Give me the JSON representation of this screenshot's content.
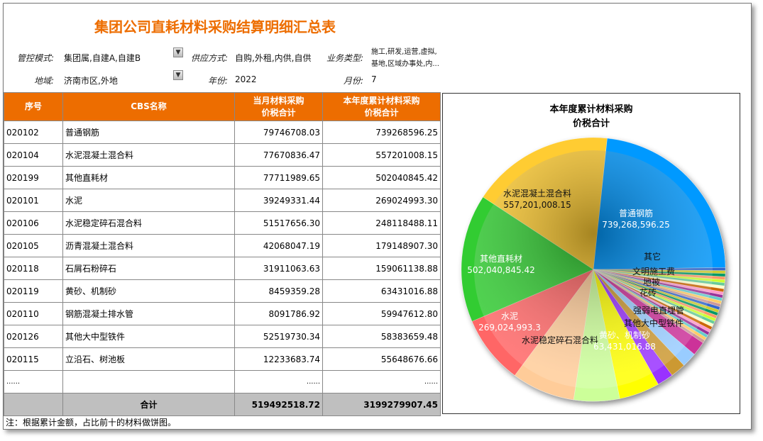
{
  "title": "集团公司直耗材料采购结算明细汇总表",
  "filters": {
    "control_mode": {
      "label": "管控模式:",
      "value": "集团属,自建A,自建B"
    },
    "supply": {
      "label": "供应方式:",
      "value": "自购,外租,内供,自供"
    },
    "business": {
      "label": "业务类型:",
      "value_line1": "施工,研发,运营,虚拟,",
      "value_line2": "基地,区域办事处,内..."
    },
    "region": {
      "label": "地域:",
      "value": "济南市区,外地"
    },
    "year": {
      "label": "年份:",
      "value": "2022"
    },
    "month": {
      "label": "月份:",
      "value": "7"
    },
    "dropdown_glyph": "▼"
  },
  "table": {
    "headers": {
      "seq": "序号",
      "name": "CBS名称",
      "month_l1": "当月材料采购",
      "month_l2": "价税合计",
      "year_l1": "本年度累计材料采购",
      "year_l2": "价税合计"
    },
    "rows": [
      {
        "seq": "020102",
        "name": "普通钢筋",
        "month": "79746708.03",
        "year": "739268596.25"
      },
      {
        "seq": "020104",
        "name": "水泥混凝土混合料",
        "month": "77670836.47",
        "year": "557201008.15"
      },
      {
        "seq": "020199",
        "name": "其他直耗材",
        "month": "77711989.65",
        "year": "502040845.42"
      },
      {
        "seq": "020101",
        "name": "水泥",
        "month": "39249331.44",
        "year": "269024993.30"
      },
      {
        "seq": "020106",
        "name": "水泥稳定碎石混合料",
        "month": "51517656.30",
        "year": "248118488.11"
      },
      {
        "seq": "020105",
        "name": "沥青混凝土混合料",
        "month": "42068047.19",
        "year": "179148907.30"
      },
      {
        "seq": "020118",
        "name": "石屑石粉碎石",
        "month": "31911063.63",
        "year": "159061138.88"
      },
      {
        "seq": "020119",
        "name": "黄砂、机制砂",
        "month": "8459359.28",
        "year": "63431016.88"
      },
      {
        "seq": "020110",
        "name": "钢筋混凝土排水管",
        "month": "8091786.92",
        "year": "59947612.80"
      },
      {
        "seq": "020126",
        "name": "其他大中型铁件",
        "month": "52519730.34",
        "year": "58383659.48"
      },
      {
        "seq": "020115",
        "name": "立沿石、树池板",
        "month": "12233683.74",
        "year": "55648676.66"
      }
    ],
    "ellipsis": "......",
    "total": {
      "label": "合计",
      "month": "519492518.72",
      "year": "3199279907.45"
    }
  },
  "note": "注：根据累计金额，占比前十的材料做饼图。",
  "chart_data": {
    "type": "pie",
    "title_l1": "本年度累计材料采购",
    "title_l2": "价税合计",
    "total": 3199279907.45,
    "slices": [
      {
        "name": "普通钢筋",
        "value": 739268596.25,
        "color": "#0099FF"
      },
      {
        "name": "立沿石、树池板",
        "value": 55648676.66,
        "color": "#CC3399"
      },
      {
        "name": "其他大中型铁件",
        "value": 58383659.48,
        "color": "#99CCFF"
      },
      {
        "name": "钢筋混凝土排水管",
        "value": 59947612.8,
        "color": "#CC9933"
      },
      {
        "name": "黄砂、机制砂",
        "value": 63431016.88,
        "color": "#9933FF"
      },
      {
        "name": "石屑石粉碎石",
        "value": 159061138.88,
        "color": "#FFFF00"
      },
      {
        "name": "沥青混凝土混合料",
        "value": 179148907.3,
        "color": "#CCFF99"
      },
      {
        "name": "水泥稳定碎石混合料",
        "value": 248118488.11,
        "color": "#FFCC99"
      },
      {
        "name": "水泥",
        "value": 269024993.3,
        "color": "#FF6666"
      },
      {
        "name": "其他直耗材",
        "value": 502040845.42,
        "color": "#33CC33"
      },
      {
        "name": "水泥混凝土混合料",
        "value": 557201008.15,
        "color": "#FFCC33"
      }
    ],
    "other_colors": [
      "#3366CC",
      "#CCCC33",
      "#009966",
      "#FF9966",
      "#CCFF33",
      "#66CC99",
      "#FFFFCC",
      "#CC6600",
      "#FF99CC",
      "#993399",
      "#66CCCC",
      "#FFCC66",
      "#CC9999"
    ],
    "labels": [
      {
        "text": "普通钢筋",
        "value": "739,268,596.25",
        "color": "#fff"
      },
      {
        "text": "水泥混凝土混合料",
        "value": "557,201,008.15",
        "color": "#111"
      },
      {
        "text": "其他直耗材",
        "value": "502,040,845.42",
        "color": "#fff"
      },
      {
        "text": "水泥",
        "value": "269,024,993.3",
        "color": "#fff"
      },
      {
        "text": "水泥稳定碎石混合料",
        "value": "",
        "color": "#111"
      },
      {
        "text": "黄砂、机制砂",
        "value": "63,431,016.88",
        "color": "#fff"
      },
      {
        "text": "其他大中型铁件",
        "value": "",
        "color": "#111"
      },
      {
        "text": "强弱电直埋管",
        "value": "",
        "color": "#111"
      },
      {
        "text": "花砖",
        "value": "",
        "color": "#111"
      },
      {
        "text": "地被",
        "value": "",
        "color": "#111"
      },
      {
        "text": "文明施工费",
        "value": "",
        "color": "#111"
      },
      {
        "text": "其它",
        "value": "",
        "color": "#111"
      }
    ]
  }
}
